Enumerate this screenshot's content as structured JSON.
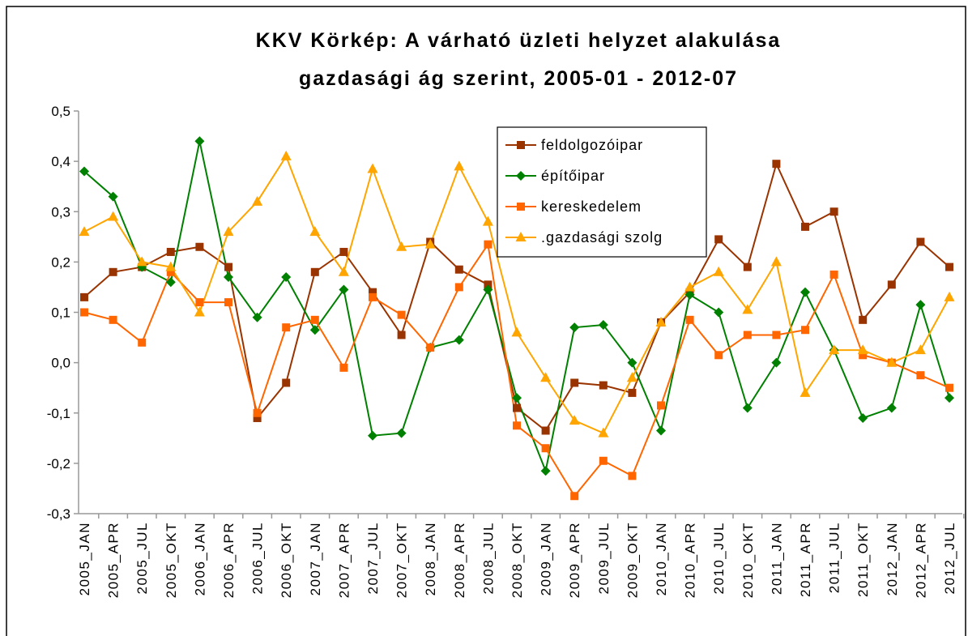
{
  "chart_data": {
    "type": "line",
    "title": [
      "KKV Körkép: A várható üzleti helyzet alakulása",
      "gazdasági ág szerint, 2005-01 - 2012-07"
    ],
    "categories": [
      "2005_JAN",
      "2005_APR",
      "2005_JUL",
      "2005_OKT",
      "2006_JAN",
      "2006_APR",
      "2006_JUL",
      "2006_OKT",
      "2007_JAN",
      "2007_APR",
      "2007_JUL",
      "2007_OKT",
      "2008_JAN",
      "2008_APR",
      "2008_JUL",
      "2008_OKT",
      "2009_JAN",
      "2009_APR",
      "2009_JUL",
      "2009_OKT",
      "2010_JAN",
      "2010_APR",
      "2010_JUL",
      "2010_OKT",
      "2011_JAN",
      "2011_APR",
      "2011_JUL",
      "2011_OKT",
      "2012_JAN",
      "2012_APR",
      "2012_JUL"
    ],
    "series": [
      {
        "name": "feldolgozóipar",
        "color": "#993300",
        "marker": "square",
        "values": [
          0.13,
          0.18,
          0.19,
          0.22,
          0.23,
          0.19,
          -0.11,
          -0.04,
          0.18,
          0.22,
          0.14,
          0.055,
          0.24,
          0.185,
          0.155,
          -0.09,
          -0.135,
          -0.04,
          -0.045,
          -0.06,
          0.08,
          0.14,
          0.245,
          0.19,
          0.395,
          0.27,
          0.3,
          0.085,
          0.155,
          0.24,
          0.19
        ]
      },
      {
        "name": "építőipar",
        "color": "#008000",
        "marker": "diamond",
        "values": [
          0.38,
          0.33,
          0.19,
          0.16,
          0.44,
          0.17,
          0.09,
          0.17,
          0.065,
          0.145,
          -0.145,
          -0.14,
          0.03,
          0.045,
          0.145,
          -0.07,
          -0.215,
          0.07,
          0.075,
          0.0,
          -0.135,
          0.135,
          0.1,
          -0.09,
          0.0,
          0.14,
          0.025,
          -0.11,
          -0.09,
          0.115,
          -0.07
        ]
      },
      {
        "name": "kereskedelem",
        "color": "#ff6600",
        "marker": "square",
        "values": [
          0.1,
          0.085,
          0.04,
          0.18,
          0.12,
          0.12,
          -0.1,
          0.07,
          0.085,
          -0.01,
          0.13,
          0.095,
          0.03,
          0.15,
          0.235,
          -0.125,
          -0.17,
          -0.265,
          -0.195,
          -0.225,
          -0.085,
          0.085,
          0.015,
          0.055,
          0.055,
          0.065,
          0.175,
          0.015,
          0.0,
          -0.025,
          -0.05
        ]
      },
      {
        "name": ".gazdasági szolg",
        "color": "#ffa500",
        "marker": "triangle",
        "values": [
          0.26,
          0.29,
          0.2,
          0.19,
          0.1,
          0.26,
          0.32,
          0.41,
          0.26,
          0.18,
          0.385,
          0.23,
          0.235,
          0.39,
          0.28,
          0.06,
          -0.03,
          -0.115,
          -0.14,
          -0.03,
          0.08,
          0.15,
          0.18,
          0.105,
          0.2,
          -0.06,
          0.025,
          0.025,
          0.0,
          0.025,
          0.13
        ]
      }
    ],
    "ylim": [
      -0.3,
      0.5
    ],
    "yticks": [
      {
        "value": -0.3,
        "label": "-0,3"
      },
      {
        "value": -0.2,
        "label": "-0,2"
      },
      {
        "value": -0.1,
        "label": "-0,1"
      },
      {
        "value": 0,
        "label": "0,0"
      },
      {
        "value": 0.1,
        "label": "0,1"
      },
      {
        "value": 0.2,
        "label": "0,2"
      },
      {
        "value": 0.3,
        "label": "0,3"
      },
      {
        "value": 0.4,
        "label": "0,4"
      },
      {
        "value": 0.5,
        "label": "0,5"
      }
    ],
    "grid": false
  }
}
